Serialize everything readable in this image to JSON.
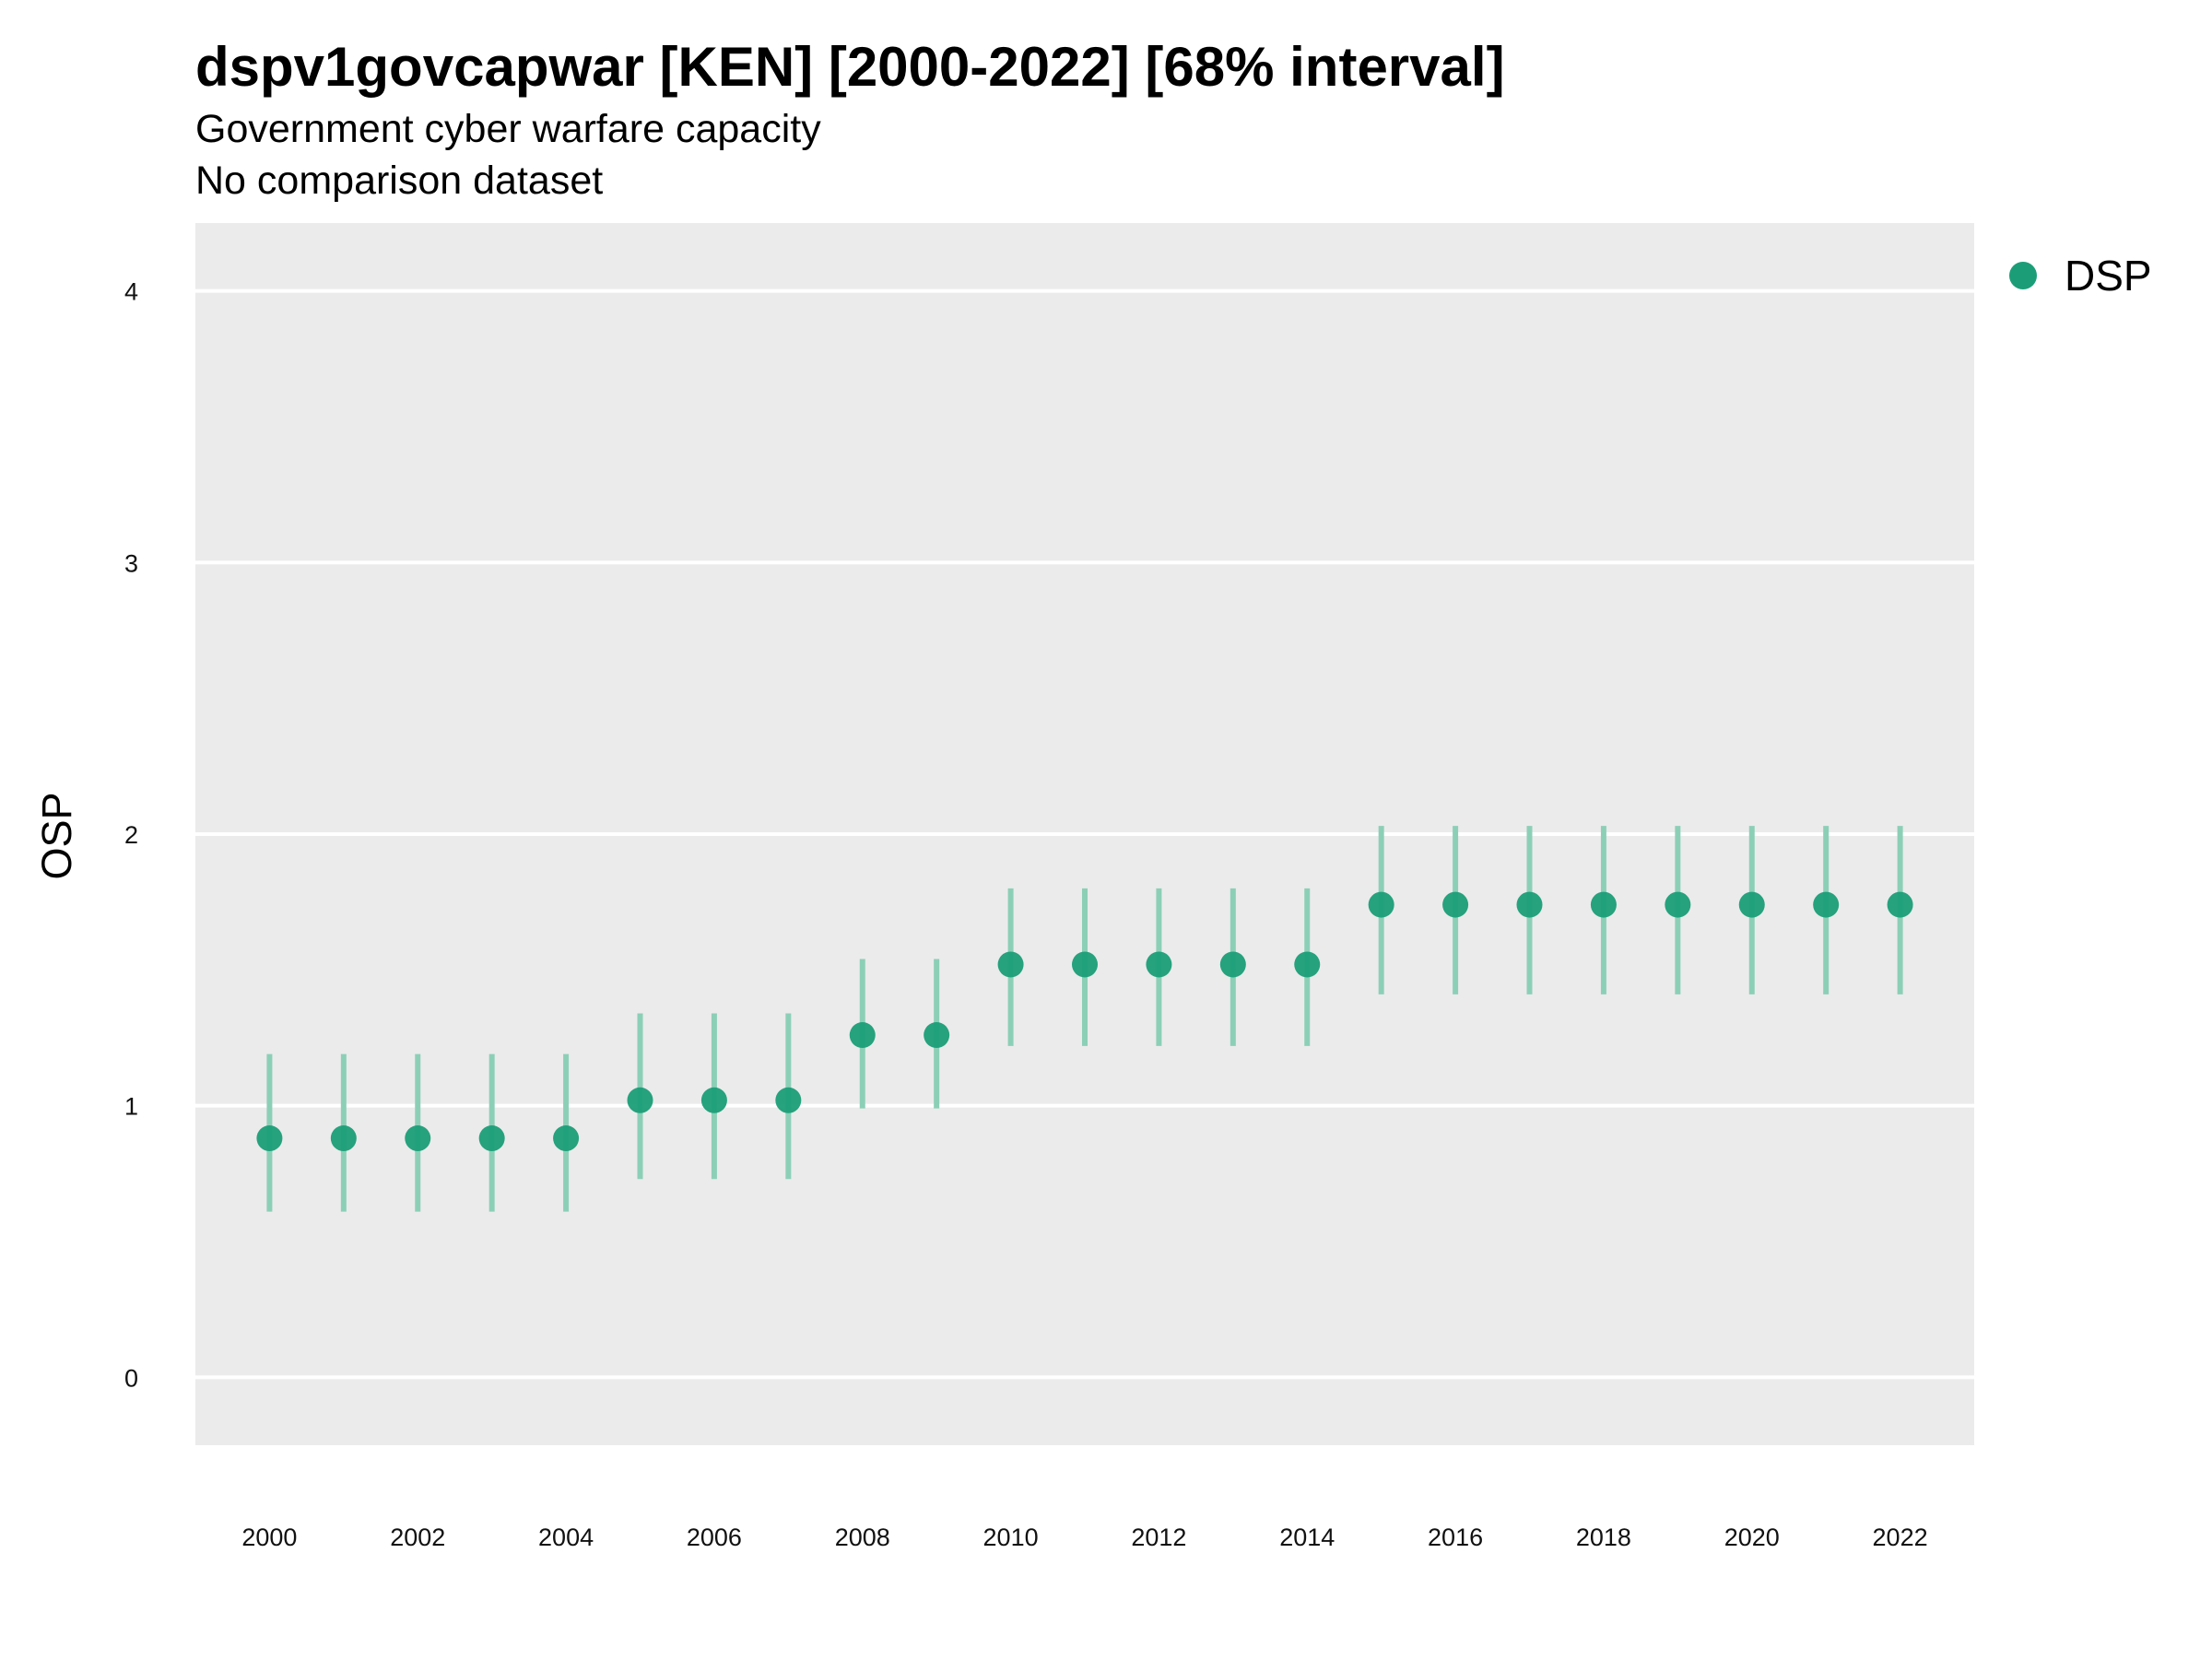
{
  "chart_data": {
    "type": "scatter",
    "title": "dspv1govcapwar [KEN] [2000-2022] [68% interval]",
    "subtitle": "Government cyber warfare capacity",
    "subtitle2": "No comparison dataset",
    "xlabel": "",
    "ylabel": "OSP",
    "xlim": [
      1999,
      2023
    ],
    "ylim": [
      -0.25,
      4.25
    ],
    "x_ticks": [
      2000,
      2002,
      2004,
      2006,
      2008,
      2010,
      2012,
      2014,
      2016,
      2018,
      2020,
      2022
    ],
    "y_ticks": [
      0,
      1,
      2,
      3,
      4
    ],
    "grid": "horizontal major only",
    "legend_position": "right",
    "colors": {
      "point": "#1b9e77",
      "interval": "#8ccfb7",
      "panel_background": "#ebebeb",
      "gridline": "#ffffff"
    },
    "series": [
      {
        "name": "DSP",
        "x": [
          2000,
          2001,
          2002,
          2003,
          2004,
          2005,
          2006,
          2007,
          2008,
          2009,
          2010,
          2011,
          2012,
          2013,
          2014,
          2015,
          2016,
          2017,
          2018,
          2019,
          2020,
          2021,
          2022
        ],
        "y": [
          0.88,
          0.88,
          0.88,
          0.88,
          0.88,
          1.02,
          1.02,
          1.02,
          1.26,
          1.26,
          1.52,
          1.52,
          1.52,
          1.52,
          1.52,
          1.74,
          1.74,
          1.74,
          1.74,
          1.74,
          1.74,
          1.74,
          1.74
        ],
        "lower": [
          0.61,
          0.61,
          0.61,
          0.61,
          0.61,
          0.73,
          0.73,
          0.73,
          0.99,
          0.99,
          1.22,
          1.22,
          1.22,
          1.22,
          1.22,
          1.41,
          1.41,
          1.41,
          1.41,
          1.41,
          1.41,
          1.41,
          1.41
        ],
        "upper": [
          1.19,
          1.19,
          1.19,
          1.19,
          1.19,
          1.34,
          1.34,
          1.34,
          1.54,
          1.54,
          1.8,
          1.8,
          1.8,
          1.8,
          1.8,
          2.03,
          2.03,
          2.03,
          2.03,
          2.03,
          2.03,
          2.03,
          2.03
        ]
      }
    ]
  }
}
